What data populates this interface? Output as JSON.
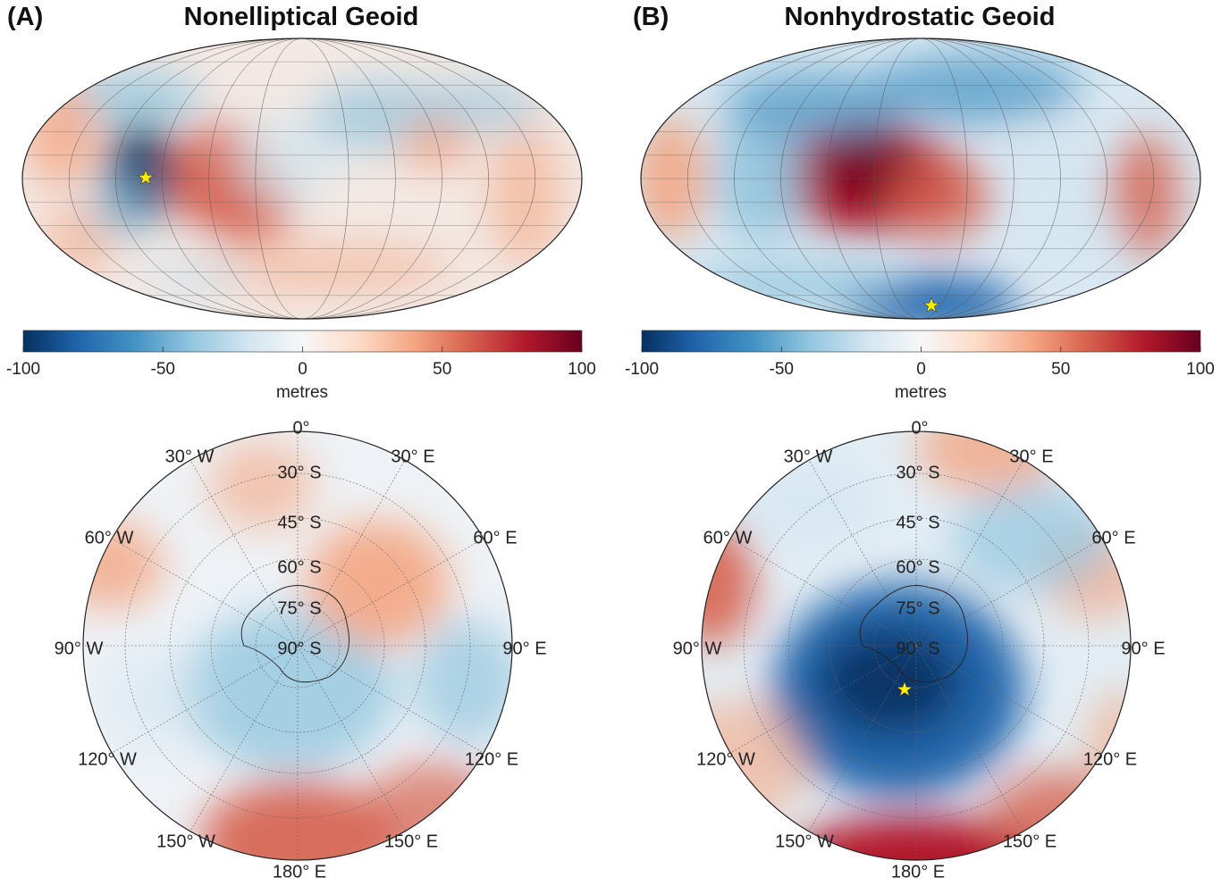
{
  "colors": {
    "colormap": [
      "#053061",
      "#2166ac",
      "#4393c3",
      "#92c5de",
      "#d1e5f0",
      "#f7f7f7",
      "#fddbc7",
      "#f4a582",
      "#d6604d",
      "#b2182b",
      "#67001f"
    ],
    "star": "#ffee00",
    "coastline": "#222222"
  },
  "panels": [
    {
      "label": "(A)",
      "title": "Nonelliptical Geoid",
      "colorbar": {
        "ticks": [
          "-100",
          "-50",
          "0",
          "50",
          "100"
        ],
        "unit": "metres",
        "range": [
          -100,
          100
        ]
      },
      "polar_labels": [
        "0°",
        "30° W",
        "30° E",
        "30° S",
        "45° S",
        "60° S",
        "75° S",
        "90° S",
        "60° W",
        "60° E",
        "90° W",
        "90° E",
        "120° W",
        "120° E",
        "150° W",
        "150° E",
        "180° E"
      ]
    },
    {
      "label": "(B)",
      "title": "Nonhydrostatic Geoid",
      "colorbar": {
        "ticks": [
          "-100",
          "-50",
          "0",
          "50",
          "100"
        ],
        "unit": "metres",
        "range": [
          -100,
          100
        ]
      },
      "polar_labels": [
        "0°",
        "30° W",
        "30° E",
        "30° S",
        "45° S",
        "60° S",
        "75° S",
        "90° S",
        "60° W",
        "60° E",
        "90° W",
        "90° E",
        "120° W",
        "120° E",
        "150° W",
        "150° E",
        "180° E"
      ]
    }
  ]
}
